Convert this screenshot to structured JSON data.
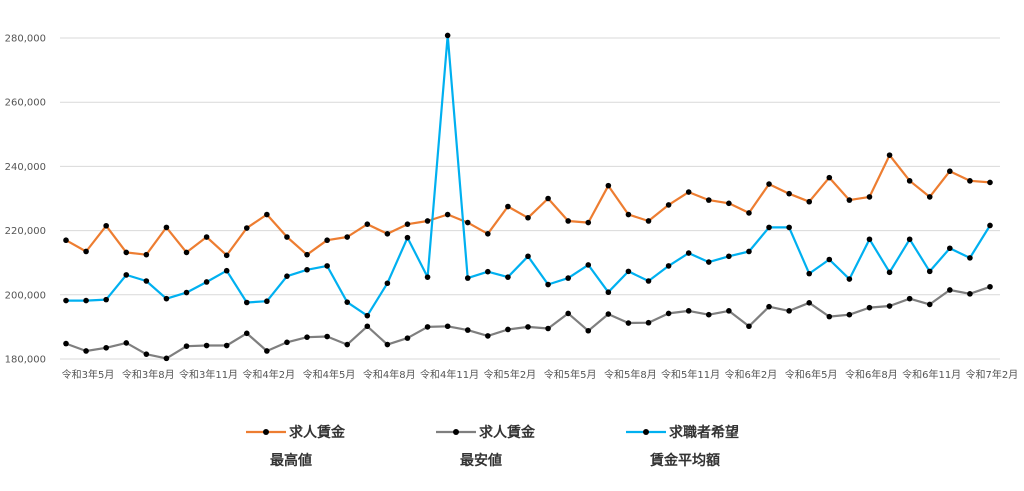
{
  "chart_data": {
    "type": "line",
    "title": "",
    "xlabel": "",
    "ylabel": "",
    "ylim": [
      180000,
      280000
    ],
    "y_ticks": [
      180000,
      200000,
      220000,
      240000,
      260000,
      280000
    ],
    "y_tick_labels": [
      "180,000",
      "200,000",
      "220,000",
      "240,000",
      "260,000",
      "280,000"
    ],
    "x_tick_labels": [
      "令和3年5月",
      "令和3年8月",
      "令和3年11月",
      "令和4年2月",
      "令和4年5月",
      "令和4年8月",
      "令和4年11月",
      "令和5年2月",
      "令和5年5月",
      "令和5年8月",
      "令和5年11月",
      "令和6年2月",
      "令和6年5月",
      "令和6年8月",
      "令和6年11月",
      "令和7年2月"
    ],
    "grid": "horizontal",
    "legend_position": "bottom",
    "series": [
      {
        "name_lines": [
          "求人賃金",
          "最高値"
        ],
        "color": "#ED7D31",
        "values": [
          217000,
          213500,
          221500,
          213200,
          212500,
          221000,
          213200,
          218000,
          212300,
          220800,
          225000,
          218000,
          212500,
          217000,
          218000,
          222000,
          219000,
          222000,
          223000,
          225000,
          222500,
          219000,
          227500,
          224000,
          230000,
          223000,
          222500,
          234000,
          225000,
          223000,
          228000,
          232000,
          229500,
          228500,
          225500,
          234500,
          231500,
          229000,
          236500,
          229500,
          230500,
          243500,
          235500,
          230500,
          238500,
          235500,
          235000
        ]
      },
      {
        "name_lines": [
          "求人賃金",
          "最安値"
        ],
        "color": "#7F7F7F",
        "values": [
          184800,
          182500,
          183500,
          185000,
          181500,
          180200,
          184000,
          184200,
          184200,
          188000,
          182500,
          185200,
          186800,
          187000,
          184500,
          190200,
          184500,
          186500,
          190000,
          190200,
          189000,
          187200,
          189200,
          190000,
          189500,
          194200,
          188800,
          194000,
          191200,
          191300,
          194200,
          195000,
          193800,
          195000,
          190200,
          196300,
          195000,
          197500,
          193200,
          193800,
          196000,
          196500,
          198800,
          197000,
          201500,
          200300,
          202500
        ]
      },
      {
        "name_lines": [
          "求職者希望",
          "賃金平均額"
        ],
        "color": "#00B0F0",
        "values": [
          198200,
          198200,
          198500,
          206200,
          204300,
          198800,
          200700,
          204000,
          207500,
          197600,
          198000,
          205800,
          207800,
          209000,
          197700,
          193500,
          203600,
          217800,
          205500,
          280800,
          205200,
          207200,
          205500,
          212000,
          203200,
          205200,
          209300,
          200800,
          207300,
          204300,
          209000,
          213000,
          210200,
          212000,
          213500,
          221000,
          221000,
          206600,
          211000,
          204900,
          217300,
          207000,
          217300,
          207300,
          214500,
          211500,
          221600
        ]
      }
    ]
  }
}
